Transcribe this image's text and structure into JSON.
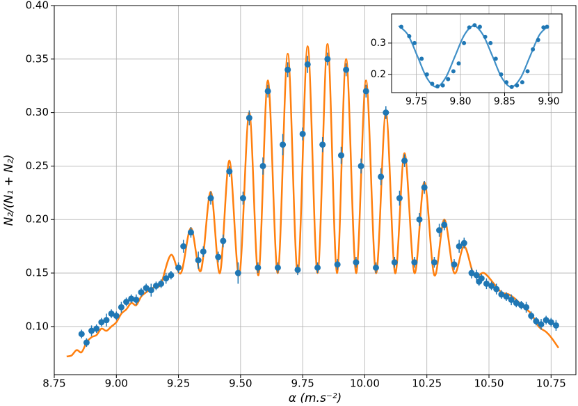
{
  "chart_data": [
    {
      "type": "scatter",
      "xlabel": "α (m.s⁻²)",
      "ylabel": "N₂/(N₁ + N₂)",
      "xlim": [
        8.75,
        10.85
      ],
      "ylim": [
        0.055,
        0.4
      ],
      "xticks": [
        8.75,
        {
          "value": 9,
          "label": "9.00"
        },
        9.25,
        {
          "value": 9.5,
          "label": "9.50"
        },
        9.75,
        {
          "value": 10,
          "label": "10.00"
        },
        10.25,
        {
          "value": 10.5,
          "label": "10.50"
        },
        10.75
      ],
      "yticks": [
        {
          "value": 0.1,
          "label": "0.10"
        },
        0.15,
        {
          "value": 0.2,
          "label": "0.20"
        },
        0.25,
        {
          "value": 0.3,
          "label": "0.30"
        },
        0.35,
        {
          "value": 0.4,
          "label": "0.40"
        }
      ],
      "grid": true,
      "series": [
        {
          "type": "line",
          "color": "#ff7f0e",
          "x": [
            8.8,
            8.82,
            8.84,
            8.86,
            8.88,
            8.9,
            8.92,
            8.94,
            8.96,
            8.98,
            9.0,
            9.02,
            9.04,
            9.06,
            9.08,
            9.1,
            9.12,
            9.14,
            9.16,
            9.18,
            9.22,
            9.26,
            9.3,
            9.34,
            9.38,
            9.417,
            9.455,
            9.495,
            9.535,
            9.572,
            9.61,
            9.65,
            9.69,
            9.73,
            9.77,
            9.81,
            9.85,
            9.888,
            9.925,
            9.965,
            10.005,
            10.045,
            10.085,
            10.122,
            10.16,
            10.2,
            10.24,
            10.28,
            10.32,
            10.36,
            10.4,
            10.44,
            10.48,
            10.52,
            10.55,
            10.58,
            10.61,
            10.64,
            10.67,
            10.7,
            10.73,
            10.75,
            10.78
          ],
          "values": [
            0.072,
            0.073,
            0.078,
            0.076,
            0.085,
            0.09,
            0.092,
            0.098,
            0.096,
            0.1,
            0.104,
            0.112,
            0.116,
            0.122,
            0.12,
            0.128,
            0.132,
            0.135,
            0.138,
            0.14,
            0.167,
            0.15,
            0.192,
            0.152,
            0.226,
            0.15,
            0.255,
            0.148,
            0.3,
            0.148,
            0.33,
            0.15,
            0.355,
            0.15,
            0.362,
            0.15,
            0.364,
            0.15,
            0.35,
            0.15,
            0.33,
            0.15,
            0.3,
            0.15,
            0.262,
            0.15,
            0.235,
            0.148,
            0.2,
            0.15,
            0.175,
            0.148,
            0.15,
            0.14,
            0.132,
            0.13,
            0.125,
            0.118,
            0.112,
            0.1,
            0.095,
            0.09,
            0.08
          ]
        },
        {
          "type": "scatter",
          "color": "#1f77b4",
          "x": [
            8.86,
            8.88,
            8.9,
            8.92,
            8.94,
            8.96,
            8.98,
            9.0,
            9.02,
            9.04,
            9.06,
            9.08,
            9.1,
            9.12,
            9.14,
            9.16,
            9.18,
            9.2,
            9.22,
            9.25,
            9.27,
            9.3,
            9.33,
            9.35,
            9.38,
            9.41,
            9.43,
            9.455,
            9.49,
            9.51,
            9.535,
            9.57,
            9.59,
            9.61,
            9.65,
            9.67,
            9.69,
            9.73,
            9.75,
            9.77,
            9.81,
            9.83,
            9.85,
            9.89,
            9.905,
            9.925,
            9.965,
            9.985,
            10.005,
            10.045,
            10.065,
            10.085,
            10.12,
            10.14,
            10.16,
            10.2,
            10.22,
            10.24,
            10.28,
            10.3,
            10.32,
            10.36,
            10.38,
            10.4,
            10.43,
            10.45,
            10.47,
            10.49,
            10.51,
            10.53,
            10.55,
            10.57,
            10.59,
            10.61,
            10.63,
            10.65,
            10.67,
            10.69,
            10.71,
            10.73,
            10.75,
            10.77,
            10.46
          ],
          "values": [
            0.093,
            0.085,
            0.096,
            0.098,
            0.104,
            0.106,
            0.112,
            0.11,
            0.118,
            0.123,
            0.126,
            0.125,
            0.132,
            0.136,
            0.134,
            0.138,
            0.14,
            0.145,
            0.148,
            0.155,
            0.175,
            0.188,
            0.162,
            0.17,
            0.22,
            0.165,
            0.18,
            0.245,
            0.15,
            0.22,
            0.295,
            0.155,
            0.25,
            0.32,
            0.155,
            0.27,
            0.34,
            0.153,
            0.28,
            0.345,
            0.155,
            0.27,
            0.35,
            0.158,
            0.26,
            0.34,
            0.16,
            0.25,
            0.32,
            0.155,
            0.24,
            0.3,
            0.16,
            0.22,
            0.255,
            0.16,
            0.2,
            0.23,
            0.16,
            0.19,
            0.195,
            0.158,
            0.175,
            0.178,
            0.15,
            0.148,
            0.145,
            0.14,
            0.138,
            0.135,
            0.13,
            0.128,
            0.125,
            0.122,
            0.12,
            0.118,
            0.11,
            0.105,
            0.102,
            0.106,
            0.104,
            0.101,
            0.142
          ],
          "errors": [
            0.004,
            0.004,
            0.005,
            0.004,
            0.004,
            0.006,
            0.004,
            0.004,
            0.005,
            0.004,
            0.004,
            0.005,
            0.004,
            0.004,
            0.006,
            0.004,
            0.004,
            0.005,
            0.004,
            0.005,
            0.006,
            0.005,
            0.008,
            0.005,
            0.006,
            0.005,
            0.006,
            0.005,
            0.01,
            0.006,
            0.007,
            0.005,
            0.008,
            0.006,
            0.005,
            0.01,
            0.007,
            0.005,
            0.006,
            0.008,
            0.005,
            0.007,
            0.006,
            0.005,
            0.008,
            0.006,
            0.005,
            0.007,
            0.006,
            0.005,
            0.008,
            0.006,
            0.005,
            0.007,
            0.006,
            0.005,
            0.006,
            0.006,
            0.005,
            0.006,
            0.005,
            0.005,
            0.006,
            0.005,
            0.005,
            0.005,
            0.004,
            0.005,
            0.004,
            0.005,
            0.004,
            0.004,
            0.005,
            0.004,
            0.004,
            0.005,
            0.004,
            0.004,
            0.005,
            0.004,
            0.004,
            0.005,
            0.004
          ]
        }
      ]
    },
    {
      "type": "scatter",
      "xlim": [
        9.722,
        9.915
      ],
      "ylim": [
        0.142,
        0.393
      ],
      "xticks": [
        9.75,
        {
          "value": 9.8,
          "label": "9.80"
        },
        9.85,
        {
          "value": 9.9,
          "label": "9.90"
        }
      ],
      "yticks": [
        0.2,
        0.3
      ],
      "grid": true,
      "series": [
        {
          "type": "line",
          "color": "#3f8fc7",
          "x": [
            9.73,
            9.7406,
            9.7513,
            9.7619,
            9.7725,
            9.7831,
            9.7938,
            9.8044,
            9.815,
            9.8256,
            9.8363,
            9.8469,
            9.8575,
            9.8681,
            9.8788,
            9.8894,
            9.9
          ],
          "values": [
            0.355,
            0.326,
            0.258,
            0.189,
            0.16,
            0.189,
            0.258,
            0.326,
            0.355,
            0.326,
            0.258,
            0.189,
            0.16,
            0.189,
            0.258,
            0.326,
            0.355
          ]
        },
        {
          "type": "scatter",
          "color": "#1f77b4",
          "x": [
            9.733,
            9.742,
            9.748,
            9.756,
            9.762,
            9.768,
            9.774,
            9.78,
            9.786,
            9.792,
            9.798,
            9.804,
            9.81,
            9.816,
            9.822,
            9.828,
            9.834,
            9.84,
            9.846,
            9.852,
            9.858,
            9.864,
            9.87,
            9.876,
            9.882,
            9.888,
            9.894,
            9.898
          ],
          "values": [
            0.352,
            0.322,
            0.3,
            0.25,
            0.2,
            0.17,
            0.162,
            0.165,
            0.185,
            0.21,
            0.235,
            0.3,
            0.35,
            0.357,
            0.352,
            0.32,
            0.3,
            0.25,
            0.2,
            0.175,
            0.16,
            0.165,
            0.175,
            0.21,
            0.28,
            0.31,
            0.35,
            0.352
          ]
        }
      ]
    }
  ]
}
